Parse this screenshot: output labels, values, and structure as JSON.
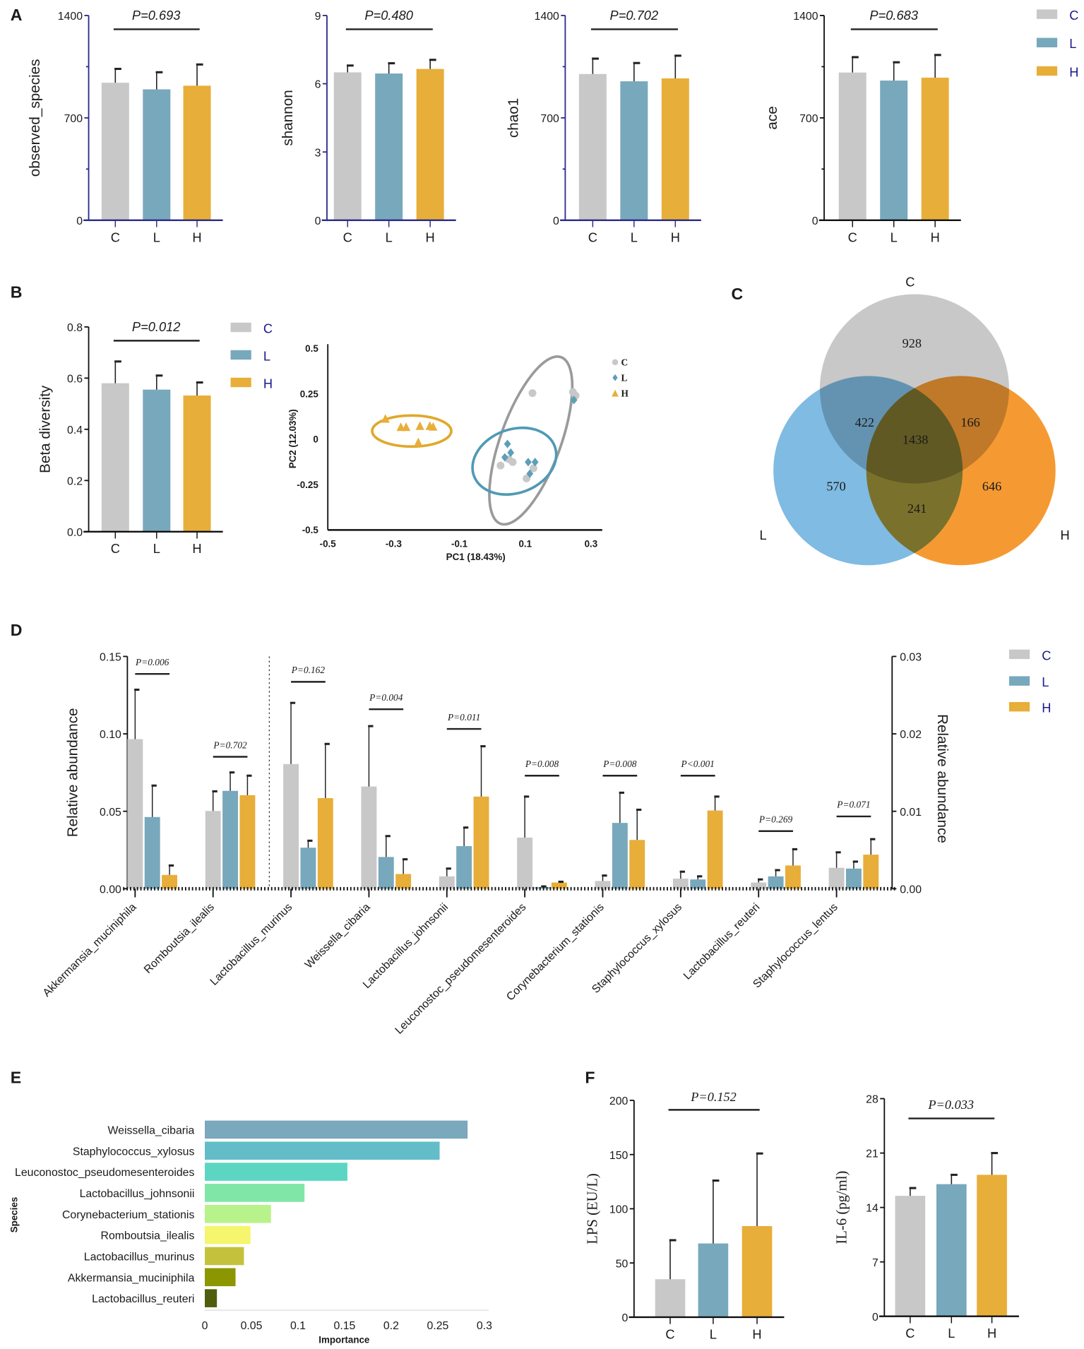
{
  "colors": {
    "C": "#c8c8c8",
    "L": "#78a8bc",
    "H": "#e8ae3a",
    "axis_blue": "#2b2b8c"
  },
  "panel_labels": [
    "A",
    "B",
    "C",
    "D",
    "E",
    "F"
  ],
  "legend": {
    "groups": [
      "C",
      "L",
      "H"
    ]
  },
  "chart_data": [
    {
      "type": "bar",
      "ylabel": "observed_species",
      "categories": [
        "C",
        "L",
        "H"
      ],
      "values": [
        940,
        895,
        920
      ],
      "errors": [
        1035,
        1012,
        1065
      ],
      "ylim": [
        0,
        1400
      ],
      "ticks": [
        0,
        700,
        1400
      ],
      "minor_ticks": [
        350,
        1050
      ],
      "tick_labels": [
        "0",
        "700",
        "1400"
      ],
      "p_label": "P=0.693"
    },
    {
      "type": "bar",
      "ylabel": "shannon",
      "categories": [
        "C",
        "L",
        "H"
      ],
      "values": [
        6.5,
        6.45,
        6.65
      ],
      "errors": [
        6.8,
        6.9,
        7.05
      ],
      "ylim": [
        0,
        9
      ],
      "ticks": [
        0,
        3,
        6,
        9
      ],
      "minor_ticks": [],
      "tick_labels": [
        "0",
        "3",
        "6",
        "9"
      ],
      "p_label": "P=0.480"
    },
    {
      "type": "bar",
      "ylabel": "chao1",
      "categories": [
        "C",
        "L",
        "H"
      ],
      "values": [
        1000,
        950,
        970
      ],
      "errors": [
        1105,
        1075,
        1125
      ],
      "ylim": [
        0,
        1400
      ],
      "ticks": [
        0,
        700,
        1400
      ],
      "minor_ticks": [
        350,
        1050
      ],
      "tick_labels": [
        "0",
        "700",
        "1400"
      ],
      "p_label": "P=0.702"
    },
    {
      "type": "bar",
      "ylabel": "ace",
      "categories": [
        "C",
        "L",
        "H"
      ],
      "values": [
        1010,
        955,
        975
      ],
      "errors": [
        1115,
        1080,
        1130
      ],
      "ylim": [
        0,
        1400
      ],
      "ticks": [
        0,
        700,
        1400
      ],
      "minor_ticks": [
        350,
        1050
      ],
      "tick_labels": [
        "0",
        "700",
        "1400"
      ],
      "p_label": "P=0.683"
    },
    {
      "type": "bar",
      "ylabel": "Beta diversity",
      "categories": [
        "C",
        "L",
        "H"
      ],
      "values": [
        0.58,
        0.555,
        0.532
      ],
      "errors": [
        0.665,
        0.61,
        0.583
      ],
      "ylim": [
        0,
        0.8
      ],
      "ticks": [
        0,
        0.2,
        0.4,
        0.6,
        0.8
      ],
      "minor_ticks": [],
      "tick_labels": [
        "0.0",
        "0.2",
        "0.4",
        "0.6",
        "0.8"
      ],
      "p_label": "P=0.012"
    },
    {
      "type": "scatter",
      "xlabel": "PC1 (18.43%)",
      "ylabel": "PC2 (12.03%)",
      "xlim": [
        -0.5,
        0.3
      ],
      "ylim": [
        -0.5,
        0.5
      ],
      "xticks": [
        -0.5,
        -0.3,
        -0.1,
        0.1,
        0.3
      ],
      "xtick_labels": [
        "-0.5",
        "-0.3",
        "-0.1",
        "0.1",
        "0.3"
      ],
      "yticks": [
        0.5,
        0.25,
        0,
        -0.25,
        -0.5
      ],
      "ytick_labels": [
        "0.5",
        "0.25",
        "0",
        "-0.25",
        "-0.5"
      ],
      "series": [
        {
          "name": "C",
          "marker": "circle",
          "points": [
            [
              0.122,
              0.254
            ],
            [
              0.245,
              0.26
            ],
            [
              0.253,
              0.24
            ],
            [
              0.025,
              -0.145
            ],
            [
              0.062,
              -0.126
            ],
            [
              0.104,
              -0.216
            ],
            [
              0.125,
              -0.16
            ],
            [
              0.05,
              -0.11
            ]
          ]
        },
        {
          "name": "L",
          "marker": "diamond",
          "points": [
            [
              0.248,
              0.216
            ],
            [
              0.046,
              -0.026
            ],
            [
              0.056,
              -0.074
            ],
            [
              0.038,
              -0.1
            ],
            [
              0.109,
              -0.126
            ],
            [
              0.13,
              -0.126
            ],
            [
              0.114,
              -0.19
            ]
          ]
        },
        {
          "name": "H",
          "marker": "triangle",
          "points": [
            [
              -0.325,
              0.11
            ],
            [
              -0.278,
              0.064
            ],
            [
              -0.262,
              0.064
            ],
            [
              -0.22,
              0.07
            ],
            [
              -0.19,
              0.07
            ],
            [
              -0.18,
              0.066
            ],
            [
              -0.225,
              -0.02
            ]
          ]
        }
      ],
      "ellipses": [
        {
          "group": "C",
          "center": [
            0.117,
            -0.007
          ],
          "rotation_deg": 20
        },
        {
          "group": "L",
          "center": [
            0.067,
            -0.121
          ],
          "rotation_deg": -20
        },
        {
          "group": "H",
          "center": [
            -0.245,
            0.045
          ],
          "rotation_deg": 0
        }
      ]
    },
    {
      "type": "venn",
      "sets": [
        "C",
        "L",
        "H"
      ],
      "set_colors": {
        "C": "#c8c8c8",
        "L": "#7fbbe2",
        "H": "#f59a32"
      },
      "regions": {
        "C_only": "928",
        "L_only": "570",
        "H_only": "646",
        "C_L": "422",
        "C_H": "166",
        "L_H": "241",
        "C_L_H": "1438"
      }
    },
    {
      "type": "bar",
      "ylabel_left": "Relative abundance",
      "ylabel_right": "Relative abundance",
      "ylim_left": [
        0,
        0.15
      ],
      "ylim_right": [
        0,
        0.03
      ],
      "left_ticks": [
        0,
        0.05,
        0.1,
        0.15
      ],
      "left_tick_labels": [
        "0.00",
        "0.05",
        "0.10",
        "0.15"
      ],
      "right_ticks": [
        0,
        0.01,
        0.02,
        0.03
      ],
      "right_tick_labels": [
        "0.00",
        "0.01",
        "0.02",
        "0.03"
      ],
      "categories": [
        "Akkermansia_muciniphila",
        "Romboutsia_ilealis",
        "Lactobacillus_murinus",
        "Weissella_cibaria",
        "Lactobacillus_johnsonii",
        "Leuconostoc_pseudomesenteroides",
        "Corynebacterium_stationis",
        "Staphylococcus_xylosus",
        "Lactobacillus_reuteri",
        "Staphylococcus_lentus"
      ],
      "axis": [
        "left",
        "left",
        "right",
        "right",
        "right",
        "right",
        "right",
        "right",
        "right",
        "right"
      ],
      "series": [
        {
          "name": "C",
          "values": [
            0.0966,
            0.0502,
            0.0161,
            0.0132,
            0.0016,
            0.0066,
            0.001,
            0.0013,
            0.0008,
            0.0027
          ],
          "errors": [
            0.1285,
            0.0629,
            0.024,
            0.021,
            0.0026,
            0.0119,
            0.0017,
            0.0022,
            0.0012,
            0.0047
          ]
        },
        {
          "name": "L",
          "values": [
            0.0463,
            0.0632,
            0.0053,
            0.0041,
            0.0055,
            0.0002,
            0.0085,
            0.0012,
            0.0016,
            0.0026
          ],
          "errors": [
            0.0666,
            0.0751,
            0.0062,
            0.0068,
            0.0079,
            0.0003,
            0.0124,
            0.0016,
            0.0024,
            0.0035
          ]
        },
        {
          "name": "H",
          "values": [
            0.0089,
            0.0604,
            0.0117,
            0.0019,
            0.0119,
            0.0008,
            0.0063,
            0.0101,
            0.003,
            0.0044
          ],
          "errors": [
            0.015,
            0.073,
            0.0187,
            0.0038,
            0.0184,
            0.0009,
            0.0102,
            0.0119,
            0.0051,
            0.0064
          ]
        }
      ],
      "p_labels": [
        "P=0.006",
        "P=0.702",
        "P=0.162",
        "P=0.004",
        "P=0.011",
        "P=0.008",
        "P=0.008",
        "P<0.001",
        "P=0.269",
        "P=0.071"
      ],
      "bracket_y_left_units": [
        0.1387,
        0.0852,
        0.1336,
        0.1159,
        0.1032,
        0.073,
        0.073,
        0.073,
        0.0372,
        0.0467
      ]
    },
    {
      "type": "bar",
      "orientation": "horizontal",
      "xlabel": "Importance",
      "ylabel": "Species",
      "categories": [
        "Weissella_cibaria",
        "Staphylococcus_xylosus",
        "Leuconostoc_pseudomesenteroides",
        "Lactobacillus_johnsonii",
        "Corynebacterium_stationis",
        "Romboutsia_ilealis",
        "Lactobacillus_murinus",
        "Akkermansia_muciniphila",
        "Lactobacillus_reuteri"
      ],
      "values": [
        0.282,
        0.252,
        0.153,
        0.107,
        0.071,
        0.049,
        0.042,
        0.033,
        0.013
      ],
      "bar_colors": [
        "#7aa8bd",
        "#62bdc9",
        "#5cd6c2",
        "#80e6a8",
        "#b8f28a",
        "#f5f56e",
        "#c4c23c",
        "#8c9600",
        "#4f5e0c"
      ],
      "xlim": [
        0,
        0.3
      ],
      "xticks": [
        0,
        0.05,
        0.1,
        0.15,
        0.2,
        0.25,
        0.3
      ],
      "xtick_labels": [
        "0",
        "0.05",
        "0.1",
        "0.15",
        "0.2",
        "0.25",
        "0.3"
      ]
    },
    {
      "type": "bar",
      "ylabel": "LPS (EU/L)",
      "categories": [
        "C",
        "L",
        "H"
      ],
      "values": [
        35,
        68,
        84
      ],
      "errors": [
        71,
        126,
        151
      ],
      "ylim": [
        0,
        200
      ],
      "ticks": [
        0,
        50,
        100,
        150,
        200
      ],
      "minor_ticks": [],
      "tick_labels": [
        "0",
        "50",
        "100",
        "150",
        "200"
      ],
      "p_label": "P=0.152"
    },
    {
      "type": "bar",
      "ylabel": "IL-6 (pg/ml)",
      "categories": [
        "C",
        "L",
        "H"
      ],
      "values": [
        15.5,
        17,
        18.2
      ],
      "errors": [
        16.5,
        18.2,
        21
      ],
      "ylim": [
        0,
        28
      ],
      "ticks": [
        0,
        7,
        14,
        21,
        28
      ],
      "minor_ticks": [],
      "tick_labels": [
        "0",
        "7",
        "14",
        "21",
        "28"
      ],
      "p_label": "P=0.033"
    }
  ]
}
